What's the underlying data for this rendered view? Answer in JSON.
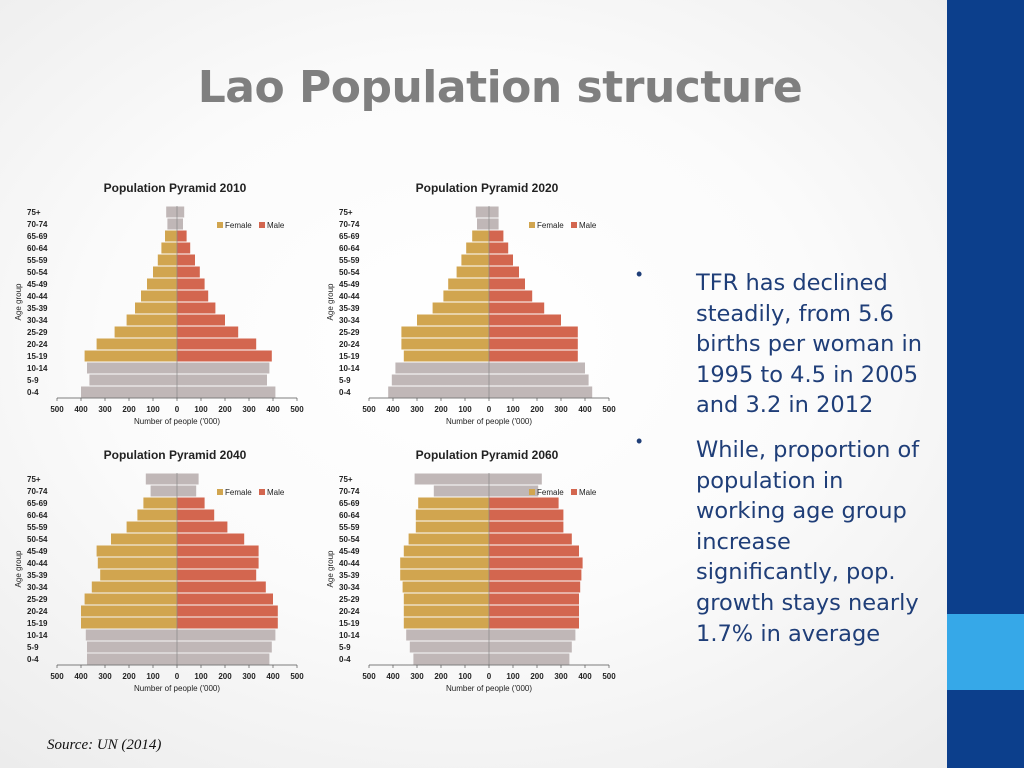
{
  "slide": {
    "title": "Lao Population structure",
    "source": "Source: UN (2014)"
  },
  "bullets": [
    {
      "text": "TFR has declined steadily, from 5.6 births per woman in 1995 to 4.5 in 2005 and 3.2 in 2012"
    },
    {
      "text": "While, proportion of population in working age group increase significantly, pop. growth stays nearly 1.7% in average"
    }
  ],
  "colors": {
    "female": "#d1a54f",
    "male": "#d3664f",
    "base_bar": "#c0b7b7",
    "axis": "#555555",
    "sidebar": "#0c3f8c",
    "sidebar_accent": "#36a8e8",
    "title": "#7f7f7f",
    "body_text": "#1f3e78"
  },
  "chart_data": [
    {
      "type": "population-pyramid",
      "title": "Population Pyramid 2010",
      "xlabel": "Number of people ('000)",
      "ylabel": "Age group",
      "xlim": [
        -500,
        500
      ],
      "xticks": [
        500,
        400,
        300,
        200,
        100,
        0,
        100,
        200,
        300,
        400,
        500
      ],
      "legend": [
        "Female",
        "Male"
      ],
      "legend_position": "top-right",
      "age_groups": [
        "75+",
        "70-74",
        "65-69",
        "60-64",
        "55-59",
        "50-54",
        "45-49",
        "40-44",
        "35-39",
        "30-34",
        "25-29",
        "20-24",
        "15-19",
        "10-14",
        "5-9",
        "0-4"
      ],
      "female": [
        45,
        40,
        50,
        65,
        80,
        100,
        125,
        150,
        175,
        210,
        260,
        335,
        385,
        375,
        365,
        400
      ],
      "male": [
        30,
        25,
        40,
        55,
        75,
        95,
        115,
        130,
        160,
        200,
        255,
        330,
        395,
        385,
        375,
        410
      ],
      "gray_age_groups": [
        "75+",
        "70-74",
        "10-14",
        "5-9",
        "0-4"
      ]
    },
    {
      "type": "population-pyramid",
      "title": "Population Pyramid 2020",
      "xlabel": "Number of people ('000)",
      "ylabel": "Age group",
      "xlim": [
        -500,
        500
      ],
      "xticks": [
        500,
        400,
        300,
        200,
        100,
        0,
        100,
        200,
        300,
        400,
        500
      ],
      "legend": [
        "Female",
        "Male"
      ],
      "legend_position": "top-right",
      "age_groups": [
        "75+",
        "70-74",
        "65-69",
        "60-64",
        "55-59",
        "50-54",
        "45-49",
        "40-44",
        "35-39",
        "30-34",
        "25-29",
        "20-24",
        "15-19",
        "10-14",
        "5-9",
        "0-4"
      ],
      "female": [
        55,
        50,
        70,
        95,
        115,
        135,
        170,
        190,
        235,
        300,
        365,
        365,
        355,
        390,
        405,
        420
      ],
      "male": [
        40,
        40,
        60,
        80,
        100,
        125,
        150,
        180,
        230,
        300,
        370,
        370,
        370,
        400,
        415,
        430
      ],
      "gray_age_groups": [
        "75+",
        "70-74",
        "10-14",
        "5-9",
        "0-4"
      ]
    },
    {
      "type": "population-pyramid",
      "title": "Population Pyramid 2040",
      "xlabel": "Number of people ('000)",
      "ylabel": "Age group",
      "xlim": [
        -500,
        500
      ],
      "xticks": [
        500,
        400,
        300,
        200,
        100,
        0,
        100,
        200,
        300,
        400,
        500
      ],
      "legend": [
        "Female",
        "Male"
      ],
      "legend_position": "top-right",
      "age_groups": [
        "75+",
        "70-74",
        "65-69",
        "60-64",
        "55-59",
        "50-54",
        "45-49",
        "40-44",
        "35-39",
        "30-34",
        "25-29",
        "20-24",
        "15-19",
        "10-14",
        "5-9",
        "0-4"
      ],
      "female": [
        130,
        110,
        140,
        165,
        210,
        275,
        335,
        330,
        320,
        355,
        385,
        400,
        400,
        380,
        375,
        375
      ],
      "male": [
        90,
        80,
        115,
        155,
        210,
        280,
        340,
        340,
        330,
        370,
        400,
        420,
        420,
        410,
        395,
        385
      ],
      "gray_age_groups": [
        "75+",
        "70-74",
        "10-14",
        "5-9",
        "0-4"
      ]
    },
    {
      "type": "population-pyramid",
      "title": "Population Pyramid 2060",
      "xlabel": "Number of people ('000)",
      "ylabel": "Age group",
      "xlim": [
        -500,
        500
      ],
      "xticks": [
        500,
        400,
        300,
        200,
        100,
        0,
        100,
        200,
        300,
        400,
        500
      ],
      "legend": [
        "Female",
        "Male"
      ],
      "legend_position": "top-right",
      "age_groups": [
        "75+",
        "70-74",
        "65-69",
        "60-64",
        "55-59",
        "50-54",
        "45-49",
        "40-44",
        "35-39",
        "30-34",
        "25-29",
        "20-24",
        "15-19",
        "10-14",
        "5-9",
        "0-4"
      ],
      "female": [
        310,
        230,
        295,
        305,
        305,
        335,
        355,
        370,
        370,
        360,
        355,
        355,
        355,
        345,
        330,
        315
      ],
      "male": [
        220,
        205,
        290,
        310,
        310,
        345,
        375,
        390,
        385,
        380,
        375,
        375,
        375,
        360,
        345,
        335
      ],
      "gray_age_groups": [
        "75+",
        "70-74",
        "10-14",
        "5-9",
        "0-4"
      ]
    }
  ]
}
